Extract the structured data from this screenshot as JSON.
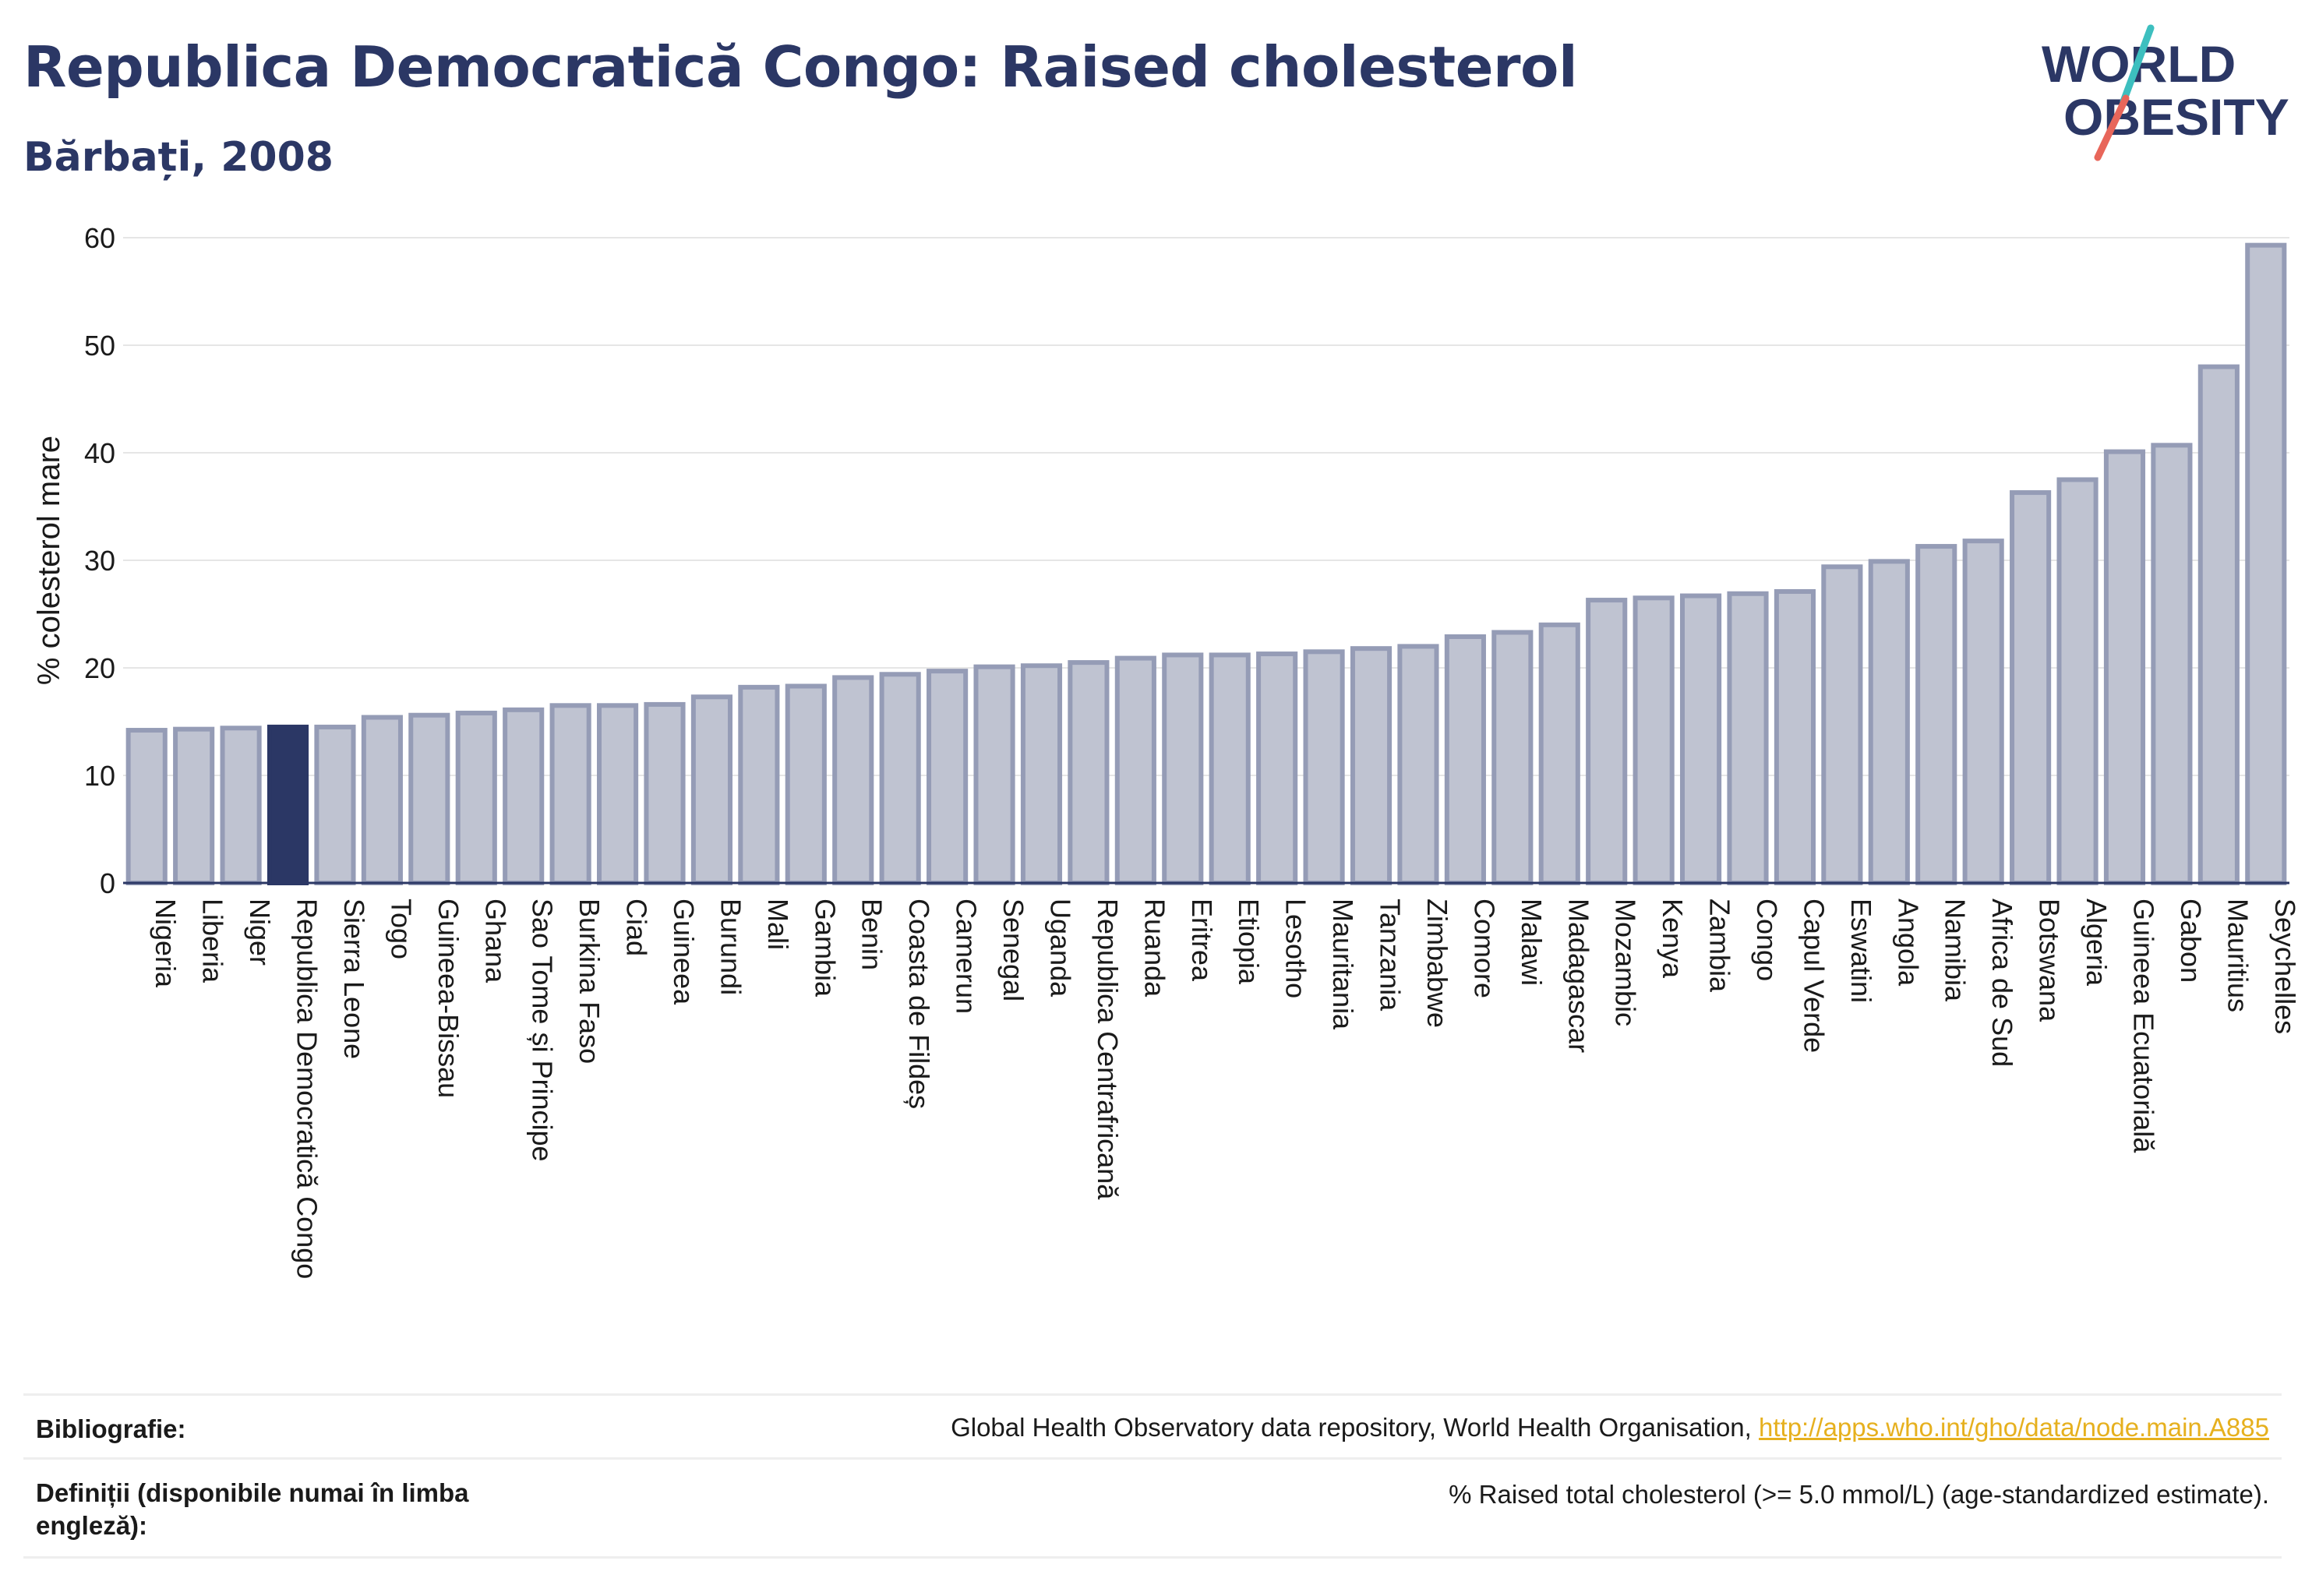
{
  "header": {
    "title": "Republica Democratică Congo: Raised cholesterol",
    "subtitle": "Bărbați, 2008"
  },
  "logo": {
    "line1": "WORLD",
    "line2": "OBESITY"
  },
  "colors": {
    "highlight": "#2b3765",
    "bar": "#bfc3d1",
    "bar_border": "#959cb6",
    "title": "#2b3765",
    "link": "#e6b01e"
  },
  "chart_data": {
    "type": "bar",
    "ylabel": "% colesterol mare",
    "xlabel": "",
    "ylim": [
      0,
      60
    ],
    "yticks": [
      0,
      10,
      20,
      30,
      40,
      50,
      60
    ],
    "highlight": "Republica Democratică Congo",
    "categories": [
      "Nigeria",
      "Liberia",
      "Niger",
      "Republica Democratică Congo",
      "Sierra Leone",
      "Togo",
      "Guineea-Bissau",
      "Ghana",
      "Sao Tome și Principe",
      "Burkina Faso",
      "Ciad",
      "Guineea",
      "Burundi",
      "Mali",
      "Gambia",
      "Benin",
      "Coasta de Fildeș",
      "Camerun",
      "Senegal",
      "Uganda",
      "Republica Centrafricană",
      "Ruanda",
      "Eritrea",
      "Etiopia",
      "Lesotho",
      "Mauritania",
      "Tanzania",
      "Zimbabwe",
      "Comore",
      "Malawi",
      "Madagascar",
      "Mozambic",
      "Kenya",
      "Zambia",
      "Congo",
      "Capul Verde",
      "Eswatini",
      "Angola",
      "Namibia",
      "Africa de Sud",
      "Botswana",
      "Algeria",
      "Guineea Ecuatorială",
      "Gabon",
      "Mauritius",
      "Seychelles"
    ],
    "values": [
      14.2,
      14.3,
      14.4,
      14.5,
      14.5,
      15.4,
      15.6,
      15.8,
      16.1,
      16.5,
      16.5,
      16.6,
      17.3,
      18.2,
      18.3,
      19.1,
      19.4,
      19.7,
      20.1,
      20.2,
      20.5,
      20.9,
      21.2,
      21.2,
      21.3,
      21.5,
      21.8,
      22.0,
      22.9,
      23.3,
      24.0,
      26.3,
      26.5,
      26.7,
      26.9,
      27.1,
      29.4,
      29.9,
      31.3,
      31.8,
      36.3,
      37.5,
      40.1,
      40.7,
      48.0,
      59.3
    ]
  },
  "footer": {
    "bibliography_label": "Bibliografie:",
    "bibliography_text": "Global Health Observatory data repository, World Health Organisation,",
    "bibliography_link": "http://apps.who.int/gho/data/node.main.A885",
    "definitions_label": "Definiții (disponibile numai în limba engleză):",
    "definitions_text": "% Raised total cholesterol (>= 5.0 mmol/L) (age-standardized estimate)."
  }
}
